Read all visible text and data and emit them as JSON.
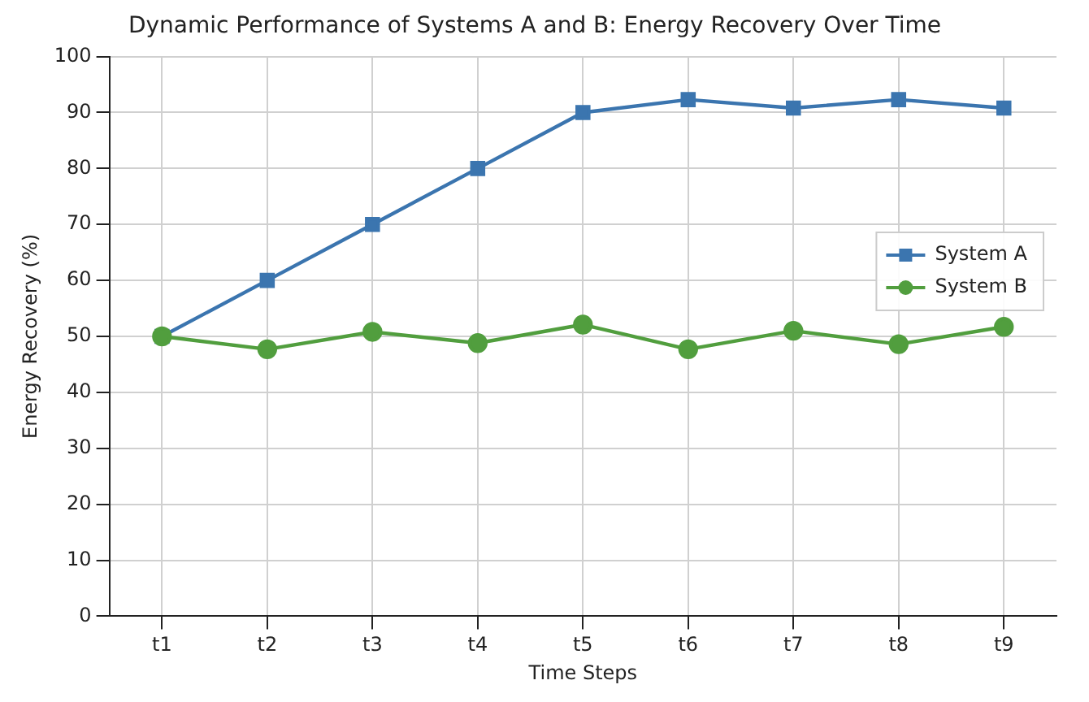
{
  "chart_data": {
    "type": "line",
    "title": "Dynamic Performance of Systems A and B: Energy Recovery Over Time",
    "xlabel": "Time Steps",
    "ylabel": "Energy Recovery (%)",
    "categories": [
      "t1",
      "t2",
      "t3",
      "t4",
      "t5",
      "t6",
      "t7",
      "t8",
      "t9"
    ],
    "series": [
      {
        "name": "System A",
        "color": "#3b75af",
        "marker": "square",
        "values": [
          50,
          60,
          70,
          80,
          90,
          92.3,
          90.8,
          92.3,
          90.8
        ]
      },
      {
        "name": "System B",
        "color": "#519e3e",
        "marker": "circle",
        "values": [
          50,
          47.7,
          50.8,
          48.8,
          52.1,
          47.7,
          51,
          48.6,
          51.7
        ]
      }
    ],
    "ylim": [
      0,
      100
    ],
    "yticks": [
      0,
      10,
      20,
      30,
      40,
      50,
      60,
      70,
      80,
      90,
      100
    ],
    "grid": true,
    "legend": "center right",
    "line_style": "solid"
  }
}
